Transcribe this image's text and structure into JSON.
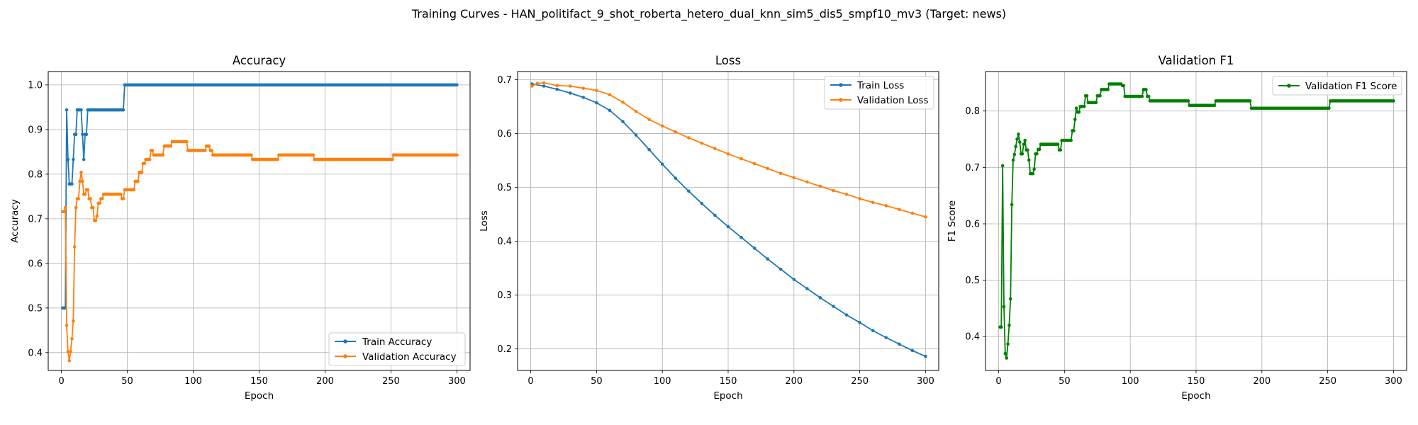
{
  "figure": {
    "suptitle": "Training Curves - HAN_politifact_9_shot_roberta_hetero_dual_knn_sim5_dis5_smpf10_mv3 (Target: news)"
  },
  "chart_data": [
    {
      "type": "line",
      "title": "Accuracy",
      "xlabel": "Epoch",
      "ylabel": "Accuracy",
      "xlim": [
        -10,
        310
      ],
      "ylim": [
        0.36,
        1.03
      ],
      "xticks": [
        0,
        50,
        100,
        150,
        200,
        250,
        300
      ],
      "yticks": [
        0.4,
        0.5,
        0.6,
        0.7,
        0.8,
        0.9,
        1.0
      ],
      "ytick_labels": [
        "0.4",
        "0.5",
        "0.6",
        "0.7",
        "0.8",
        "0.9",
        "1.0"
      ],
      "grid": true,
      "legend_position": "bottom-right",
      "series": [
        {
          "name": "Train Accuracy",
          "color": "#1f77b4",
          "steps": [
            [
              1,
              0.5
            ],
            [
              3,
              0.5
            ],
            [
              4,
              0.944
            ],
            [
              5,
              0.833
            ],
            [
              6,
              0.778
            ],
            [
              9,
              0.833
            ],
            [
              10,
              0.889
            ],
            [
              12,
              0.944
            ],
            [
              16,
              0.889
            ],
            [
              17,
              0.833
            ],
            [
              18,
              0.889
            ],
            [
              20,
              0.944
            ],
            [
              47,
              0.944
            ],
            [
              48,
              1.0
            ],
            [
              300,
              1.0
            ]
          ]
        },
        {
          "name": "Validation Accuracy",
          "color": "#ff7f0e",
          "steps": [
            [
              1,
              0.716
            ],
            [
              3,
              0.725
            ],
            [
              4,
              0.461
            ],
            [
              5,
              0.402
            ],
            [
              6,
              0.382
            ],
            [
              7,
              0.402
            ],
            [
              8,
              0.431
            ],
            [
              9,
              0.471
            ],
            [
              10,
              0.637
            ],
            [
              11,
              0.725
            ],
            [
              12,
              0.745
            ],
            [
              14,
              0.784
            ],
            [
              15,
              0.804
            ],
            [
              16,
              0.784
            ],
            [
              17,
              0.755
            ],
            [
              19,
              0.765
            ],
            [
              21,
              0.745
            ],
            [
              23,
              0.725
            ],
            [
              25,
              0.696
            ],
            [
              27,
              0.706
            ],
            [
              28,
              0.735
            ],
            [
              30,
              0.745
            ],
            [
              32,
              0.755
            ],
            [
              46,
              0.745
            ],
            [
              48,
              0.765
            ],
            [
              56,
              0.784
            ],
            [
              59,
              0.804
            ],
            [
              62,
              0.824
            ],
            [
              64,
              0.833
            ],
            [
              68,
              0.853
            ],
            [
              70,
              0.843
            ],
            [
              78,
              0.863
            ],
            [
              84,
              0.873
            ],
            [
              96,
              0.853
            ],
            [
              110,
              0.863
            ],
            [
              113,
              0.853
            ],
            [
              115,
              0.843
            ],
            [
              145,
              0.833
            ],
            [
              165,
              0.843
            ],
            [
              192,
              0.833
            ],
            [
              252,
              0.843
            ],
            [
              300,
              0.843
            ]
          ]
        }
      ]
    },
    {
      "type": "line",
      "title": "Loss",
      "xlabel": "Epoch",
      "ylabel": "Loss",
      "xlim": [
        -10,
        310
      ],
      "ylim": [
        0.16,
        0.715
      ],
      "xticks": [
        0,
        50,
        100,
        150,
        200,
        250,
        300
      ],
      "yticks": [
        0.2,
        0.3,
        0.4,
        0.5,
        0.6,
        0.7
      ],
      "ytick_labels": [
        "0.2",
        "0.3",
        "0.4",
        "0.5",
        "0.6",
        "0.7"
      ],
      "grid": true,
      "legend_position": "top-right",
      "series": [
        {
          "name": "Train Loss",
          "color": "#1f77b4",
          "points": [
            [
              1,
              0.692
            ],
            [
              10,
              0.688
            ],
            [
              20,
              0.682
            ],
            [
              30,
              0.675
            ],
            [
              40,
              0.667
            ],
            [
              50,
              0.657
            ],
            [
              60,
              0.643
            ],
            [
              70,
              0.622
            ],
            [
              80,
              0.597
            ],
            [
              90,
              0.57
            ],
            [
              100,
              0.543
            ],
            [
              110,
              0.517
            ],
            [
              120,
              0.493
            ],
            [
              130,
              0.47
            ],
            [
              140,
              0.448
            ],
            [
              150,
              0.427
            ],
            [
              160,
              0.407
            ],
            [
              170,
              0.387
            ],
            [
              180,
              0.367
            ],
            [
              190,
              0.348
            ],
            [
              200,
              0.329
            ],
            [
              210,
              0.312
            ],
            [
              220,
              0.295
            ],
            [
              230,
              0.279
            ],
            [
              240,
              0.263
            ],
            [
              250,
              0.249
            ],
            [
              260,
              0.234
            ],
            [
              270,
              0.221
            ],
            [
              280,
              0.209
            ],
            [
              290,
              0.197
            ],
            [
              300,
              0.186
            ]
          ]
        },
        {
          "name": "Validation Loss",
          "color": "#ff7f0e",
          "points": [
            [
              1,
              0.688
            ],
            [
              5,
              0.693
            ],
            [
              10,
              0.694
            ],
            [
              20,
              0.689
            ],
            [
              30,
              0.688
            ],
            [
              40,
              0.684
            ],
            [
              50,
              0.68
            ],
            [
              60,
              0.672
            ],
            [
              70,
              0.658
            ],
            [
              80,
              0.641
            ],
            [
              90,
              0.626
            ],
            [
              100,
              0.614
            ],
            [
              110,
              0.603
            ],
            [
              120,
              0.592
            ],
            [
              130,
              0.582
            ],
            [
              140,
              0.572
            ],
            [
              150,
              0.562
            ],
            [
              160,
              0.553
            ],
            [
              170,
              0.544
            ],
            [
              180,
              0.535
            ],
            [
              190,
              0.526
            ],
            [
              200,
              0.518
            ],
            [
              210,
              0.51
            ],
            [
              220,
              0.502
            ],
            [
              230,
              0.494
            ],
            [
              240,
              0.487
            ],
            [
              250,
              0.479
            ],
            [
              260,
              0.472
            ],
            [
              270,
              0.466
            ],
            [
              280,
              0.459
            ],
            [
              290,
              0.452
            ],
            [
              300,
              0.445
            ]
          ]
        }
      ]
    },
    {
      "type": "line",
      "title": "Validation F1",
      "xlabel": "Epoch",
      "ylabel": "F1 Score",
      "xlim": [
        -10,
        310
      ],
      "ylim": [
        0.34,
        0.87
      ],
      "xticks": [
        0,
        50,
        100,
        150,
        200,
        250,
        300
      ],
      "yticks": [
        0.4,
        0.5,
        0.6,
        0.7,
        0.8
      ],
      "ytick_labels": [
        "0.4",
        "0.5",
        "0.6",
        "0.7",
        "0.8"
      ],
      "grid": true,
      "legend_position": "top-right",
      "series": [
        {
          "name": "Validation F1 Score",
          "color": "#008000",
          "steps": [
            [
              1,
              0.417
            ],
            [
              2,
              0.417
            ],
            [
              3,
              0.703
            ],
            [
              4,
              0.453
            ],
            [
              5,
              0.37
            ],
            [
              6,
              0.362
            ],
            [
              7,
              0.387
            ],
            [
              8,
              0.42
            ],
            [
              9,
              0.467
            ],
            [
              10,
              0.634
            ],
            [
              11,
              0.713
            ],
            [
              12,
              0.723
            ],
            [
              13,
              0.737
            ],
            [
              14,
              0.75
            ],
            [
              15,
              0.759
            ],
            [
              16,
              0.745
            ],
            [
              17,
              0.724
            ],
            [
              19,
              0.741
            ],
            [
              20,
              0.748
            ],
            [
              21,
              0.731
            ],
            [
              23,
              0.713
            ],
            [
              24,
              0.689
            ],
            [
              27,
              0.697
            ],
            [
              28,
              0.724
            ],
            [
              30,
              0.732
            ],
            [
              32,
              0.741
            ],
            [
              46,
              0.731
            ],
            [
              48,
              0.748
            ],
            [
              56,
              0.765
            ],
            [
              58,
              0.785
            ],
            [
              59,
              0.805
            ],
            [
              60,
              0.798
            ],
            [
              62,
              0.808
            ],
            [
              66,
              0.827
            ],
            [
              68,
              0.815
            ],
            [
              75,
              0.827
            ],
            [
              78,
              0.838
            ],
            [
              84,
              0.848
            ],
            [
              94,
              0.845
            ],
            [
              96,
              0.826
            ],
            [
              110,
              0.838
            ],
            [
              113,
              0.826
            ],
            [
              115,
              0.818
            ],
            [
              145,
              0.81
            ],
            [
              165,
              0.818
            ],
            [
              192,
              0.805
            ],
            [
              252,
              0.818
            ],
            [
              300,
              0.818
            ]
          ]
        }
      ]
    }
  ]
}
